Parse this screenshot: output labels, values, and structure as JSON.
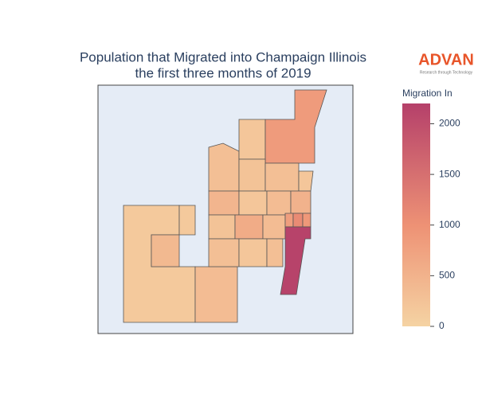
{
  "chart_data": {
    "type": "choropleth",
    "title_lines": [
      "Population that Migrated into Champaign Illinois",
      "the first three months of 2019"
    ],
    "logo": "ADVAN",
    "logo_tagline": "Research through Technology",
    "colorbar_title": "Migration In",
    "zlim": [
      0,
      2200
    ],
    "zticks": [
      0,
      500,
      1000,
      1500,
      2000
    ],
    "colorscale": [
      [
        0,
        "#f5d3a3"
      ],
      [
        0.45,
        "#ee9275"
      ],
      [
        1,
        "#b5406a"
      ]
    ],
    "values": [
      150,
      150,
      400,
      350,
      300,
      200,
      850,
      250,
      300,
      200,
      450,
      200,
      350,
      500,
      250,
      600,
      350,
      800,
      1100,
      900,
      300,
      200,
      300,
      2150
    ]
  }
}
